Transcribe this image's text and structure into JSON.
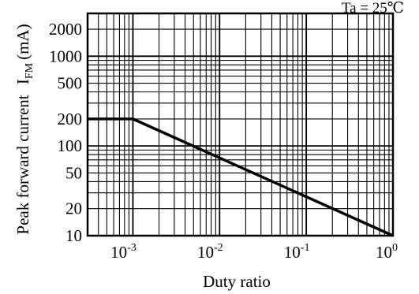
{
  "chart_data": {
    "type": "line",
    "condition_label": "Ta = 25℃",
    "xlabel": "Duty ratio",
    "ylabel_main": "Peak forward current",
    "ylabel_symbol_base": "I",
    "ylabel_symbol_sub": "FM",
    "ylabel_unit": "(mA)",
    "x_scale": "log",
    "y_scale": "log",
    "xlim": [
      0.0003,
      1.0
    ],
    "ylim": [
      10,
      3000
    ],
    "grid": true,
    "x_ticks": [
      {
        "value": 0.001,
        "base": "10",
        "exp": "-3"
      },
      {
        "value": 0.01,
        "base": "10",
        "exp": "-2"
      },
      {
        "value": 0.1,
        "base": "10",
        "exp": "-1"
      },
      {
        "value": 1,
        "base": "10",
        "exp": "0"
      }
    ],
    "y_ticks": [
      {
        "value": 10,
        "label": "10"
      },
      {
        "value": 20,
        "label": "20"
      },
      {
        "value": 50,
        "label": "50"
      },
      {
        "value": 100,
        "label": "100"
      },
      {
        "value": 200,
        "label": "200"
      },
      {
        "value": 500,
        "label": "500"
      },
      {
        "value": 1000,
        "label": "1000"
      },
      {
        "value": 2000,
        "label": "2000"
      }
    ],
    "series": [
      {
        "x": [
          0.0003,
          0.001,
          1.0
        ],
        "y": [
          200,
          200,
          10
        ],
        "color": "#000000"
      }
    ]
  }
}
